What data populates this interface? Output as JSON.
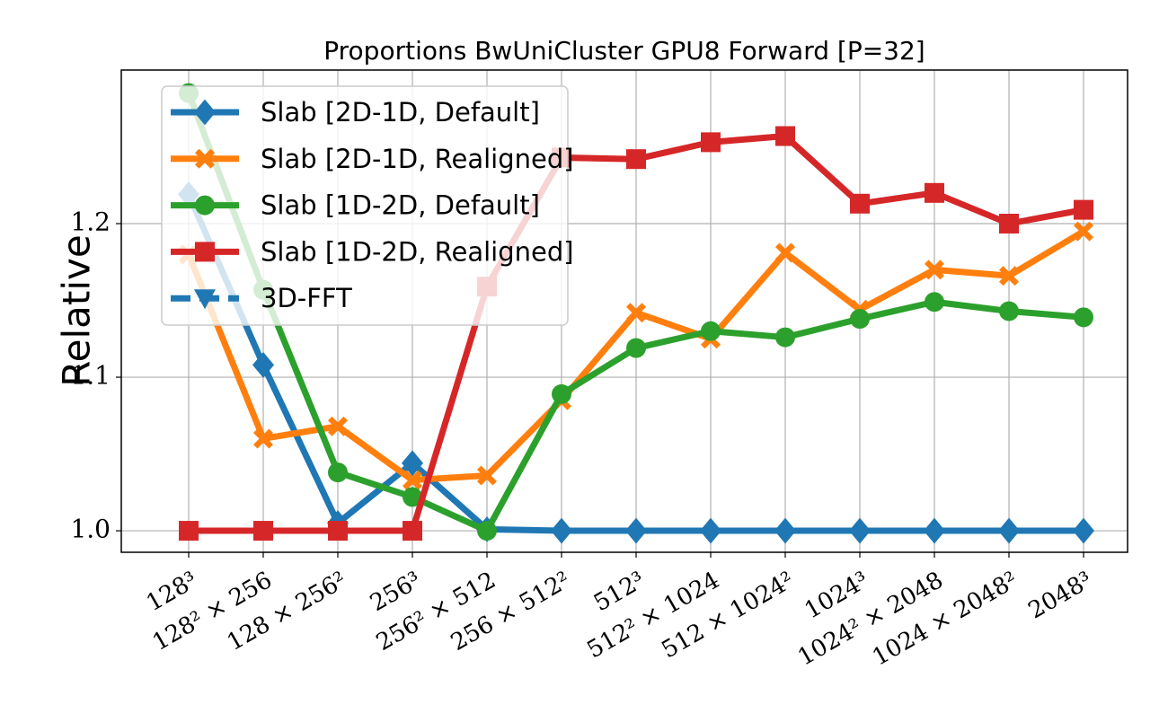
{
  "chart_data": {
    "type": "line",
    "title": "Proportions BwUniCluster GPU8 Forward [P=32]",
    "ylabel": "Relative",
    "categories": [
      "128³",
      "128² × 256",
      "128 × 256²",
      "256³",
      "256² × 512",
      "256 × 512²",
      "512³",
      "512² × 1024",
      "512 × 1024²",
      "1024³",
      "1024² × 2048",
      "1024 × 2048²",
      "2048³"
    ],
    "series": [
      {
        "name": "Slab [2D-1D, Default]",
        "color": "#1f77b4",
        "marker": "D",
        "dash": false,
        "values": [
          1.219,
          1.108,
          1.005,
          1.044,
          1.001,
          1.0,
          1.0,
          1.0,
          1.0,
          1.0,
          1.0,
          1.0,
          1.0
        ]
      },
      {
        "name": "Slab [2D-1D, Realigned]",
        "color": "#ff7f0e",
        "marker": "X",
        "dash": false,
        "values": [
          1.18,
          1.06,
          1.068,
          1.033,
          1.036,
          1.085,
          1.142,
          1.125,
          1.181,
          1.144,
          1.17,
          1.166,
          1.195
        ]
      },
      {
        "name": "Slab [1D-2D, Default]",
        "color": "#2ca02c",
        "marker": "o",
        "dash": false,
        "values": [
          1.285,
          1.157,
          1.038,
          1.022,
          1.0,
          1.089,
          1.119,
          1.13,
          1.126,
          1.138,
          1.149,
          1.143,
          1.139
        ]
      },
      {
        "name": "Slab [1D-2D, Realigned]",
        "color": "#d62728",
        "marker": "s",
        "dash": false,
        "values": [
          1.0,
          1.0,
          1.0,
          1.0,
          1.159,
          1.243,
          1.242,
          1.253,
          1.257,
          1.213,
          1.22,
          1.2,
          1.209
        ]
      },
      {
        "name": "3D-FFT",
        "color": "#1f77b4",
        "marker": "v",
        "dash": true,
        "values": [
          null,
          null,
          null,
          null,
          null,
          null,
          null,
          null,
          null,
          null,
          null,
          null,
          null
        ]
      }
    ],
    "ylim": [
      0.986,
      1.3
    ],
    "yticks": [
      {
        "value": 1.0,
        "label": "1.0"
      },
      1.1,
      1.2
    ],
    "grid": true,
    "legend": "upper left"
  }
}
